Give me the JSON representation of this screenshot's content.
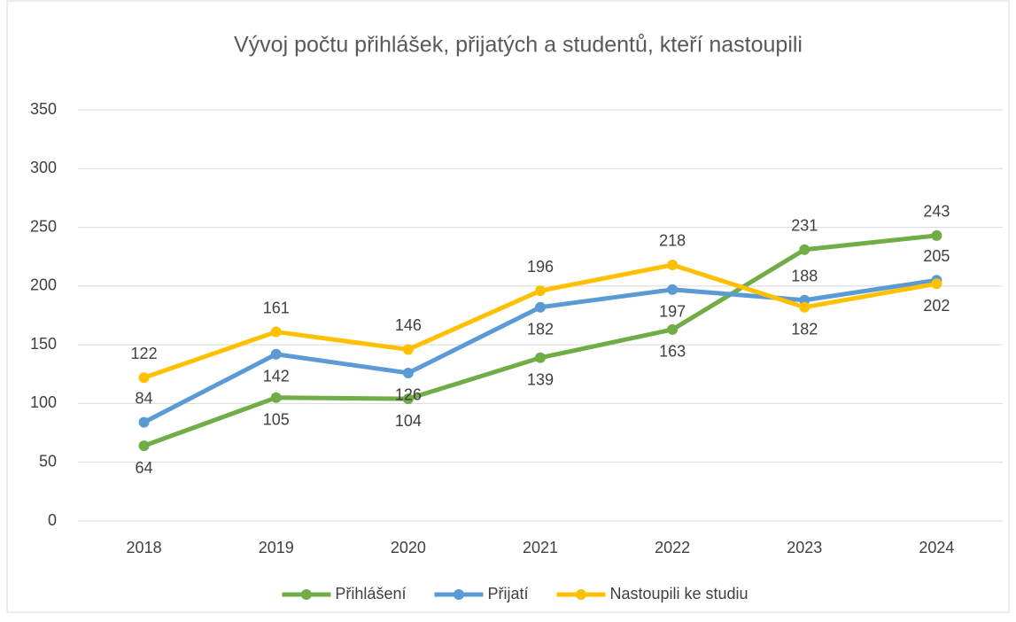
{
  "chart_data": {
    "type": "line",
    "title": "Vývoj počtu přihlášek, přijatých a studentů, kteří nastoupili",
    "categories": [
      "2018",
      "2019",
      "2020",
      "2021",
      "2022",
      "2023",
      "2024"
    ],
    "series": [
      {
        "name": "Přihlášení",
        "color": "#70ad47",
        "values": [
          64,
          105,
          104,
          139,
          163,
          231,
          243
        ]
      },
      {
        "name": "Přijatí",
        "color": "#5b9bd5",
        "values": [
          84,
          142,
          126,
          182,
          197,
          188,
          205
        ]
      },
      {
        "name": "Nastoupili ke studiu",
        "color": "#ffc000",
        "values": [
          122,
          161,
          146,
          196,
          218,
          182,
          202
        ]
      }
    ],
    "ylim": [
      0,
      350
    ],
    "yticks": [
      0,
      50,
      100,
      150,
      200,
      250,
      300,
      350
    ],
    "grid": true,
    "legend": "bottom"
  }
}
